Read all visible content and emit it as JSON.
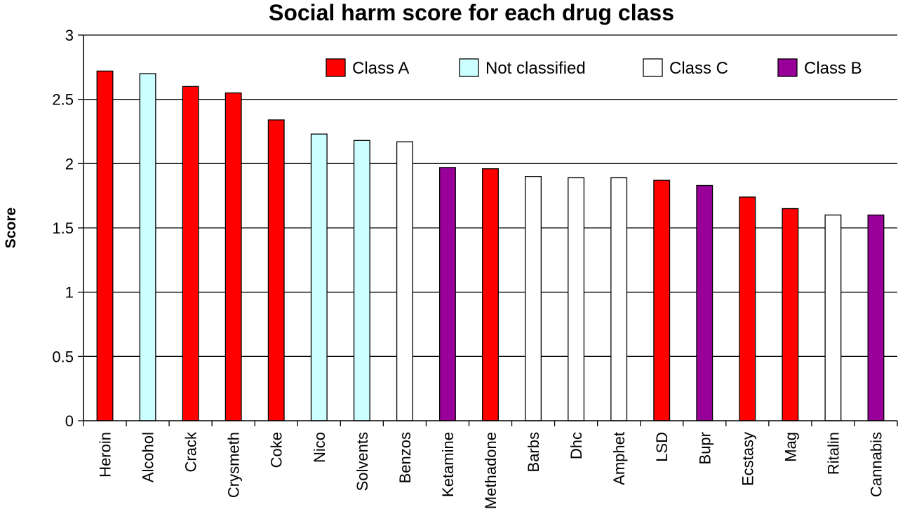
{
  "chart_data": {
    "type": "bar",
    "title": "Social harm score for each drug class",
    "ylabel": "Score",
    "xlabel": "",
    "ylim": [
      0,
      3
    ],
    "yticks": [
      0,
      0.5,
      1,
      1.5,
      2,
      2.5,
      3
    ],
    "ytick_labels": [
      "0",
      "0.5",
      "1",
      "1.5",
      "2",
      "2.5",
      "3"
    ],
    "grid": true,
    "legend_position": "top-right",
    "legend": [
      {
        "label": "Class A",
        "color": "#ff0000"
      },
      {
        "label": "Not classified",
        "color": "#ccffff"
      },
      {
        "label": "Class C",
        "color": "#ffffff"
      },
      {
        "label": "Class B",
        "color": "#990099"
      }
    ],
    "categories": [
      "Heroin",
      "Alcohol",
      "Crack",
      "Crysmeth",
      "Coke",
      "Nico",
      "Solvents",
      "Benzos",
      "Ketamine",
      "Methadone",
      "Barbs",
      "Dhc",
      "Amphet",
      "LSD",
      "Bupr",
      "Ecstasy",
      "Mag",
      "Ritalin",
      "Cannabis"
    ],
    "values": [
      2.72,
      2.7,
      2.6,
      2.55,
      2.34,
      2.23,
      2.18,
      2.17,
      1.97,
      1.96,
      1.9,
      1.89,
      1.89,
      1.87,
      1.83,
      1.74,
      1.65,
      1.6,
      1.6
    ],
    "classes": [
      "Class A",
      "Not classified",
      "Class A",
      "Class A",
      "Class A",
      "Not classified",
      "Not classified",
      "Class C",
      "Class B",
      "Class A",
      "Class C",
      "Class C",
      "Class C",
      "Class A",
      "Class B",
      "Class A",
      "Class A",
      "Class C",
      "Class B"
    ]
  }
}
